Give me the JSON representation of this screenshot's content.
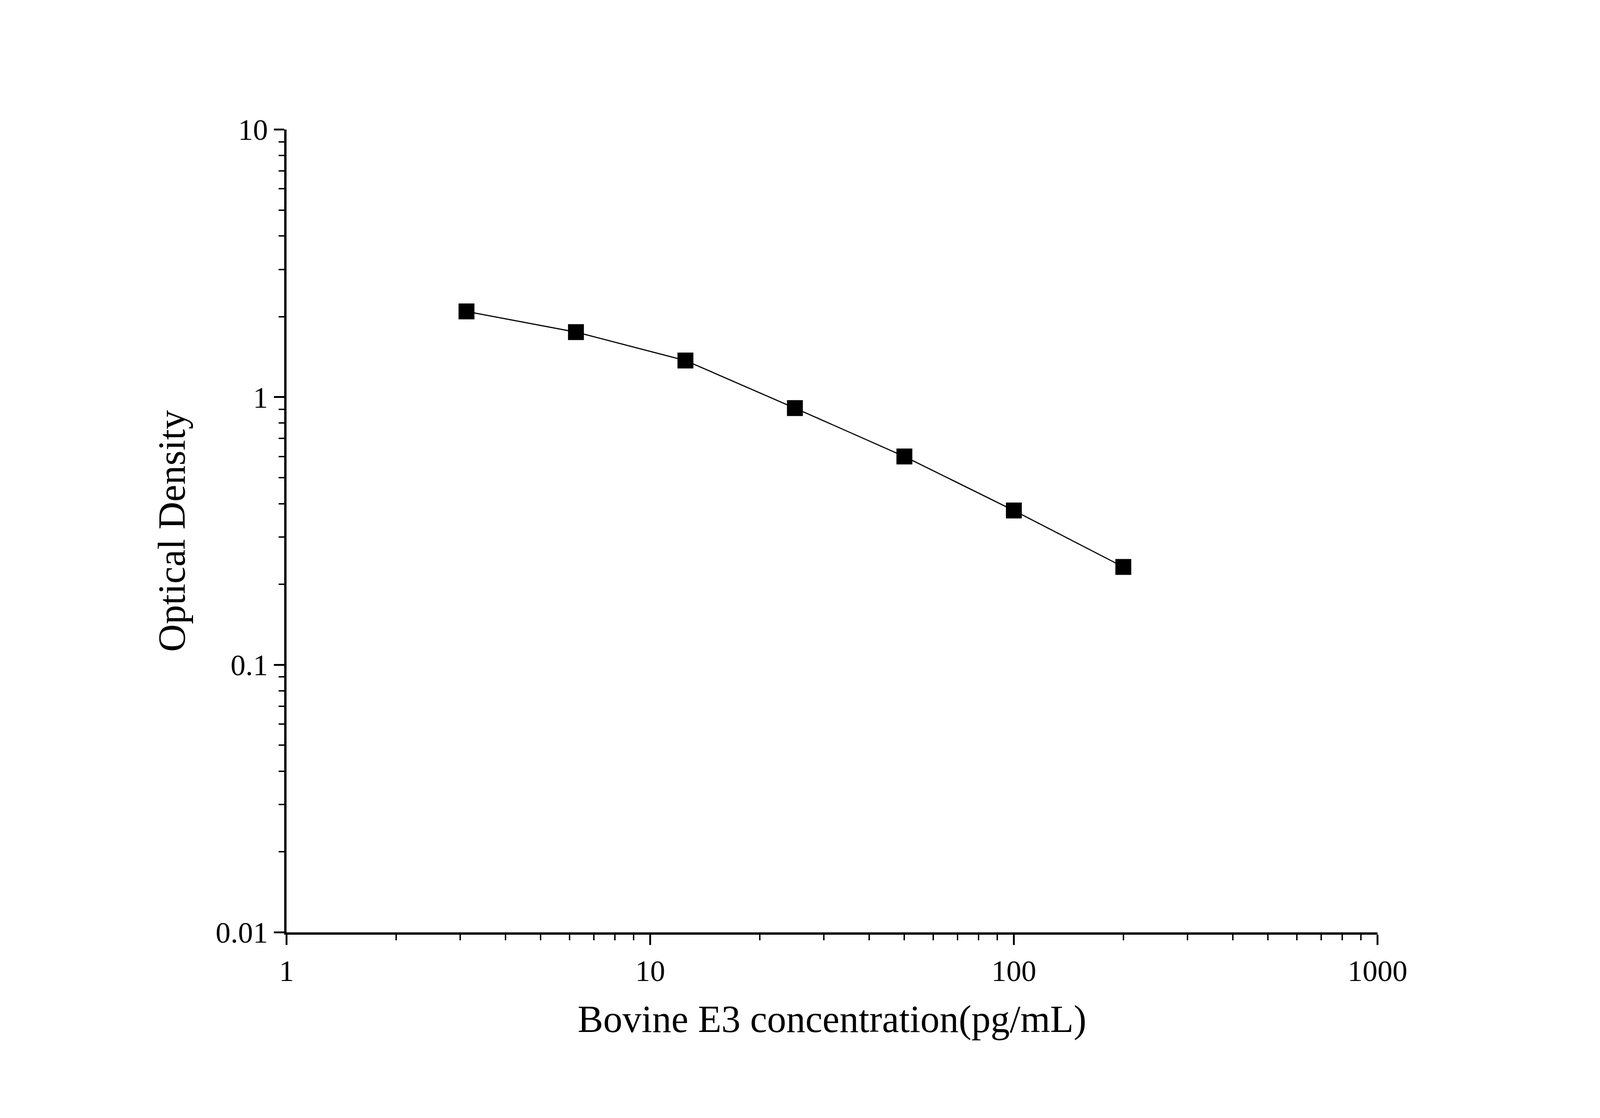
{
  "chart_data": {
    "type": "line",
    "xlabel": "Bovine E3 concentration(pg/mL)",
    "ylabel": "Optical Density",
    "x": [
      3.125,
      6.25,
      12.5,
      25,
      50,
      100,
      200
    ],
    "values": [
      2.09,
      1.75,
      1.37,
      0.91,
      0.6,
      0.377,
      0.232
    ],
    "color": "#000000",
    "marker": "square",
    "line_style": "solid",
    "log": true,
    "grid": false,
    "xlim": [
      1,
      1000
    ],
    "xticks": [
      1,
      10,
      100,
      1000
    ],
    "ylim": [
      0.01,
      10
    ],
    "yticks": [
      0.01,
      0.1,
      1,
      10
    ]
  }
}
